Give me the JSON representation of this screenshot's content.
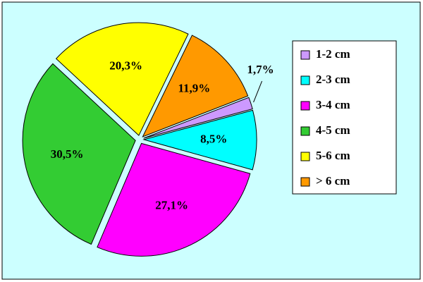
{
  "chart_data": {
    "type": "pie",
    "categories": [
      "1-2 cm",
      "2-3 cm",
      "3-4 cm",
      "4-5 cm",
      "5-6 cm",
      "> 6 cm"
    ],
    "values": [
      1.7,
      8.5,
      27.1,
      30.5,
      20.3,
      11.9
    ],
    "value_labels": [
      "1,7%",
      "8,5%",
      "27,1%",
      "30,5%",
      "20,3%",
      "11,9%"
    ],
    "colors": [
      "#cc99ff",
      "#00ffff",
      "#ff00ff",
      "#33cc33",
      "#ffff00",
      "#ff9900"
    ],
    "legend": "right"
  }
}
